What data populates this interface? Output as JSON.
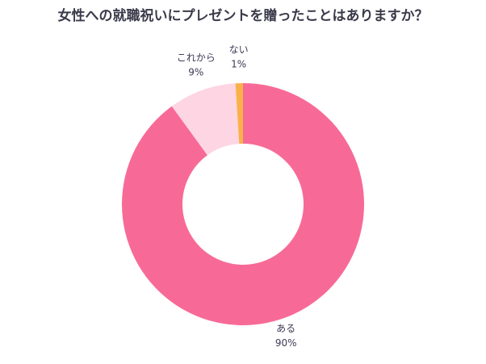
{
  "chart_data": {
    "type": "donut",
    "title": "女性への就職祝いにプレゼントを贈ったことはありますか？",
    "categories": [
      "ある",
      "これから",
      "ない"
    ],
    "values": [
      90,
      9,
      1
    ],
    "value_labels": [
      "90%",
      "9%",
      "1%"
    ],
    "colors": [
      "#f76a97",
      "#fdd5e3",
      "#f9b24a"
    ]
  }
}
